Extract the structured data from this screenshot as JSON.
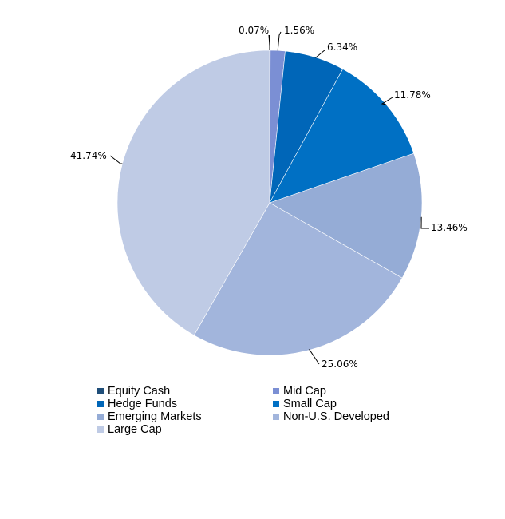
{
  "chart_data": {
    "type": "pie",
    "start_angle_deg": 0,
    "direction": "clockwise",
    "slices": [
      {
        "name": "Equity Cash",
        "value": 0.07,
        "label": "0.07%",
        "color": "#1f4e79"
      },
      {
        "name": "Mid Cap",
        "value": 1.56,
        "label": "1.56%",
        "color": "#7b8fd4"
      },
      {
        "name": "Hedge Funds",
        "value": 6.34,
        "label": "6.34%",
        "color": "#0066b8"
      },
      {
        "name": "Small Cap",
        "value": 11.78,
        "label": "11.78%",
        "color": "#0070c4"
      },
      {
        "name": "Emerging Markets",
        "value": 13.46,
        "label": "13.46%",
        "color": "#95acd6"
      },
      {
        "name": "Non-U.S. Developed",
        "value": 25.06,
        "label": "25.06%",
        "color": "#a2b5dc"
      },
      {
        "name": "Large Cap",
        "value": 41.74,
        "label": "41.74%",
        "color": "#bfcbe5"
      }
    ],
    "legend": {
      "placement": "bottom",
      "items": [
        {
          "name": "Equity Cash",
          "color": "#1f4e79"
        },
        {
          "name": "Mid Cap",
          "color": "#7b8fd4"
        },
        {
          "name": "Hedge Funds",
          "color": "#0066b8"
        },
        {
          "name": "Small Cap",
          "color": "#0070c4"
        },
        {
          "name": "Emerging Markets",
          "color": "#95acd6"
        },
        {
          "name": "Non-U.S. Developed",
          "color": "#a2b5dc"
        },
        {
          "name": "Large Cap",
          "color": "#bfcbe5"
        }
      ]
    }
  }
}
